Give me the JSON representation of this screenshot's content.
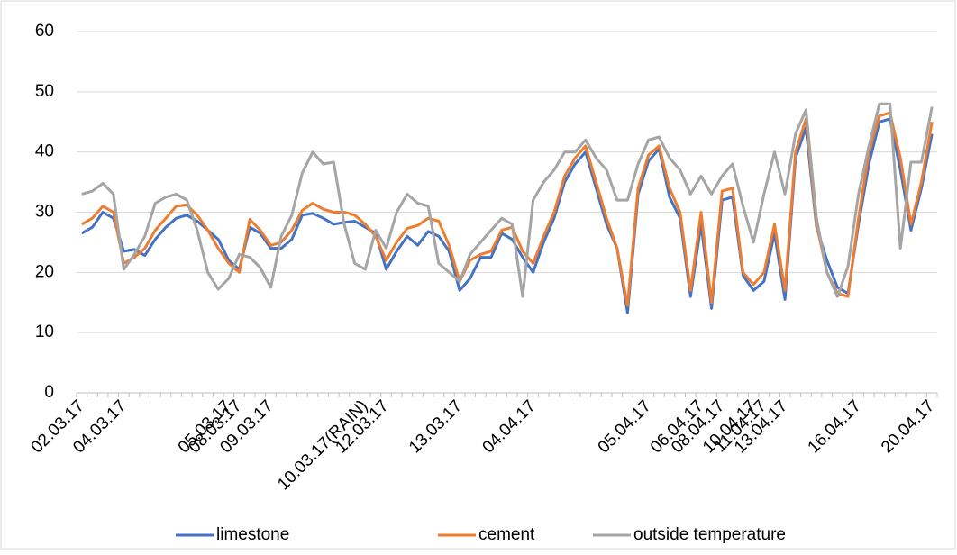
{
  "chart_data": {
    "type": "line",
    "categories": [
      "02.03.17",
      null,
      null,
      null,
      "04.03.17",
      null,
      null,
      null,
      null,
      null,
      null,
      null,
      null,
      null,
      "05.03.17",
      "08.03.17",
      null,
      null,
      "09.03.17",
      null,
      null,
      null,
      null,
      null,
      null,
      null,
      null,
      "10.03.17(RAIN)",
      null,
      "12.03.17",
      null,
      null,
      null,
      null,
      null,
      null,
      "13.03.17",
      null,
      null,
      null,
      null,
      null,
      null,
      "04.04.17",
      null,
      null,
      null,
      null,
      null,
      null,
      null,
      null,
      null,
      null,
      "05.04.17",
      null,
      null,
      null,
      null,
      "06.04.17",
      null,
      "08.04.17",
      null,
      null,
      "10.04.17",
      "11.04.17",
      null,
      "13.04.17",
      null,
      null,
      null,
      null,
      null,
      null,
      "16.04.17",
      null,
      null,
      null,
      null,
      null,
      null,
      "20.04.17"
    ],
    "series": [
      {
        "name": "limestone",
        "color": "#4472c4",
        "values": [
          26.5,
          27.5,
          30,
          29,
          23.5,
          23.8,
          22.8,
          25.5,
          27.5,
          29,
          29.5,
          28.5,
          27,
          25.5,
          22,
          20.5,
          27.5,
          26.5,
          24,
          24,
          25.5,
          29.5,
          29.8,
          29,
          28,
          28.3,
          28.5,
          27.5,
          26.5,
          20.5,
          23.5,
          26,
          24.5,
          26.8,
          26,
          23.5,
          17,
          19,
          22.5,
          22.5,
          26.5,
          25.5,
          22.5,
          20,
          25,
          29,
          35,
          38,
          40,
          34,
          28,
          24,
          13.3,
          33,
          38.5,
          40.5,
          32.5,
          29,
          16,
          28,
          14,
          32,
          32.5,
          19.5,
          17,
          18.5,
          26.5,
          15.5,
          39,
          44,
          27.5,
          22,
          17.5,
          16.5,
          28,
          38,
          45,
          45.5,
          37,
          27,
          34,
          43
        ]
      },
      {
        "name": "cement",
        "color": "#ed7d31",
        "values": [
          28,
          29,
          31,
          30,
          21.5,
          22.5,
          24,
          27,
          29,
          31,
          31.2,
          29.5,
          27,
          24,
          21.5,
          20,
          28.8,
          27,
          24.5,
          25,
          27,
          30.3,
          31.5,
          30.5,
          30,
          30,
          29.5,
          28,
          26,
          22,
          25,
          27.3,
          27.8,
          29,
          28.5,
          24.5,
          18.5,
          22,
          23,
          23.5,
          27,
          27.5,
          23.5,
          21.5,
          26,
          30,
          36,
          39,
          41,
          35,
          29,
          24,
          14.5,
          34,
          39.5,
          41,
          34,
          30,
          17,
          30,
          15,
          33.5,
          34,
          20,
          18,
          20,
          28,
          17,
          40,
          45.5,
          28,
          20,
          16.5,
          16,
          29,
          40,
          46,
          46.5,
          39,
          28,
          35,
          45
        ]
      },
      {
        "name": "outside temperature",
        "color": "#a5a5a5",
        "values": [
          33,
          33.5,
          34.8,
          33,
          20.5,
          23,
          26,
          31.5,
          32.5,
          33,
          32,
          27,
          20,
          17.2,
          19,
          23,
          22.5,
          20.8,
          17.5,
          26,
          29.5,
          36.5,
          40,
          38,
          38.3,
          28,
          21.5,
          20.5,
          27,
          24,
          30,
          33,
          31.5,
          31,
          21.5,
          20,
          18.5,
          23,
          25,
          27,
          29,
          28,
          16,
          32,
          35,
          37,
          40,
          40,
          42,
          39,
          37,
          32,
          32,
          38,
          42,
          42.5,
          39,
          37,
          33,
          36,
          33,
          36,
          38,
          31,
          25,
          33,
          40,
          33,
          43,
          47,
          29,
          20,
          16,
          21,
          33,
          41,
          48,
          48,
          24,
          38.3,
          38.3,
          47.5
        ]
      }
    ],
    "ylim": [
      0,
      60
    ],
    "yticks": [
      0,
      10,
      20,
      30,
      40,
      50,
      60
    ],
    "grid": true,
    "legend": "bottom"
  }
}
